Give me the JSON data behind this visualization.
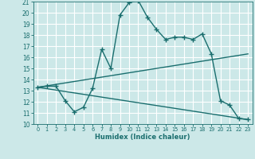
{
  "xlabel": "Humidex (Indice chaleur)",
  "bg_color": "#cce8e8",
  "grid_color": "#ffffff",
  "line_color": "#1a6e6e",
  "xlim": [
    -0.5,
    23.5
  ],
  "ylim": [
    10,
    21
  ],
  "xticks": [
    0,
    1,
    2,
    3,
    4,
    5,
    6,
    7,
    8,
    9,
    10,
    11,
    12,
    13,
    14,
    15,
    16,
    17,
    18,
    19,
    20,
    21,
    22,
    23
  ],
  "yticks": [
    10,
    11,
    12,
    13,
    14,
    15,
    16,
    17,
    18,
    19,
    20,
    21
  ],
  "series1_x": [
    0,
    1,
    2,
    3,
    4,
    5,
    6,
    7,
    8,
    9,
    10,
    11,
    12,
    13,
    14,
    15,
    16,
    17,
    18,
    19,
    20,
    21,
    22,
    23
  ],
  "series1_y": [
    13.3,
    13.4,
    13.4,
    12.1,
    11.1,
    11.5,
    13.2,
    16.7,
    15.0,
    19.8,
    20.9,
    21.1,
    19.6,
    18.5,
    17.6,
    17.8,
    17.8,
    17.6,
    18.1,
    16.3,
    12.1,
    11.7,
    10.5,
    10.4
  ],
  "series2_x": [
    0,
    23
  ],
  "series2_y": [
    13.3,
    16.3
  ],
  "series3_x": [
    0,
    23
  ],
  "series3_y": [
    13.3,
    10.4
  ],
  "marker": "+",
  "markersize": 4,
  "linewidth": 1.0
}
